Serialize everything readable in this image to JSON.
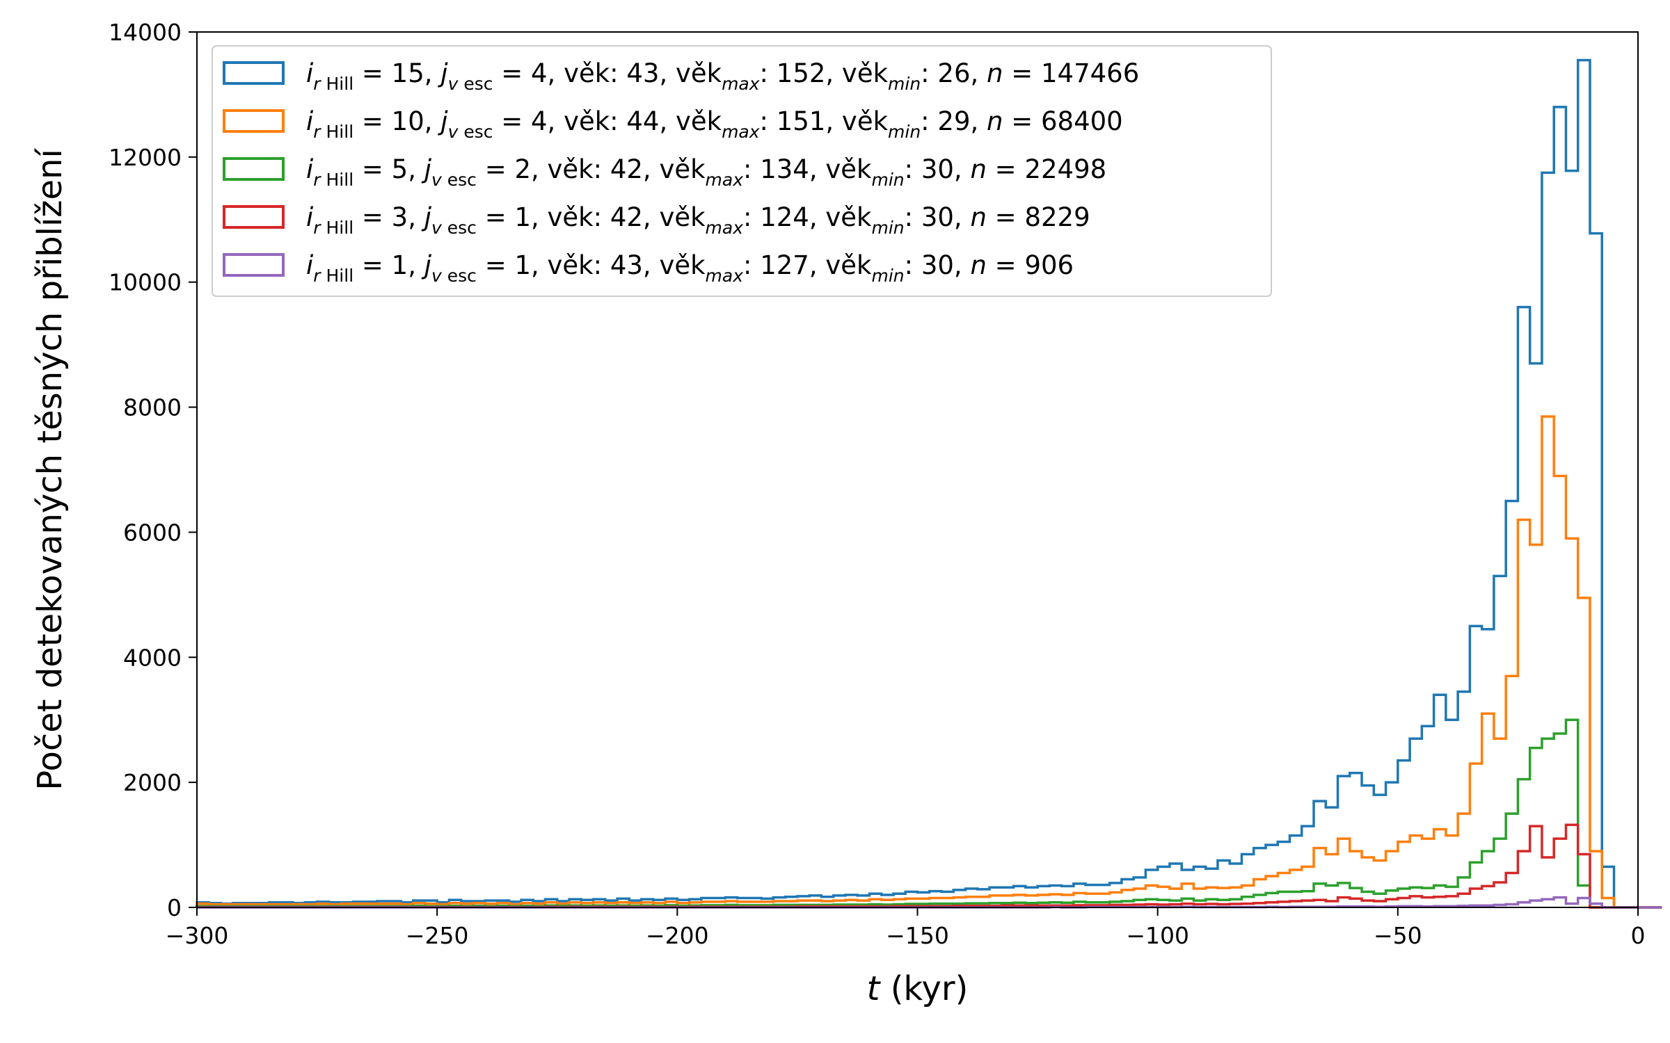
{
  "chart_data": {
    "type": "histogram-step",
    "xlabel_var": "t",
    "xlabel_unit": " (kyr)",
    "ylabel": "Počet detekovaných těsných přiblížení",
    "xlim": [
      -300,
      0
    ],
    "ylim": [
      0,
      14000
    ],
    "x_ticks": [
      -300,
      -250,
      -200,
      -150,
      -100,
      -50,
      0
    ],
    "y_ticks": [
      0,
      2000,
      4000,
      6000,
      8000,
      10000,
      12000,
      14000
    ],
    "legend_position": "upper-left",
    "bin_width": 2.5,
    "bin_start": -300,
    "series": [
      {
        "color": "#1f77b4",
        "legend": {
          "i_val": "15",
          "j_val": "4",
          "vek": "43",
          "vek_max": "152",
          "vek_min": "26",
          "n": "147466"
        },
        "values": [
          80,
          70,
          60,
          70,
          70,
          70,
          80,
          80,
          70,
          80,
          90,
          80,
          80,
          90,
          90,
          100,
          100,
          80,
          110,
          110,
          80,
          120,
          100,
          100,
          110,
          110,
          90,
          120,
          100,
          130,
          100,
          130,
          120,
          130,
          110,
          140,
          110,
          130,
          120,
          140,
          120,
          130,
          150,
          150,
          160,
          150,
          150,
          140,
          160,
          170,
          180,
          190,
          170,
          190,
          200,
          190,
          220,
          200,
          220,
          250,
          240,
          260,
          250,
          280,
          300,
          290,
          320,
          320,
          340,
          320,
          340,
          350,
          340,
          380,
          360,
          360,
          390,
          450,
          480,
          600,
          650,
          700,
          600,
          650,
          620,
          750,
          700,
          850,
          950,
          1000,
          1050,
          1150,
          1300,
          1700,
          1600,
          2100,
          2150,
          1950,
          1800,
          2000,
          2350,
          2700,
          2900,
          3400,
          3000,
          3450,
          4500,
          4450,
          5300,
          6500,
          9600,
          8700,
          11750,
          12800,
          11780,
          13550,
          10780,
          650,
          0,
          0,
          0,
          0
        ]
      },
      {
        "color": "#ff7f0e",
        "legend": {
          "i_val": "10",
          "j_val": "4",
          "vek": "44",
          "vek_max": "151",
          "vek_min": "29",
          "n": "68400"
        },
        "values": [
          60,
          50,
          50,
          50,
          50,
          50,
          50,
          50,
          50,
          50,
          60,
          50,
          60,
          60,
          60,
          60,
          60,
          50,
          70,
          60,
          50,
          70,
          60,
          70,
          60,
          70,
          50,
          70,
          60,
          80,
          60,
          80,
          70,
          80,
          70,
          80,
          70,
          80,
          70,
          90,
          70,
          80,
          90,
          90,
          100,
          90,
          90,
          90,
          100,
          100,
          110,
          110,
          100,
          110,
          120,
          110,
          130,
          120,
          130,
          140,
          140,
          150,
          150,
          160,
          170,
          170,
          190,
          190,
          200,
          190,
          200,
          210,
          200,
          230,
          220,
          220,
          240,
          280,
          300,
          350,
          330,
          300,
          380,
          300,
          320,
          310,
          320,
          350,
          450,
          500,
          550,
          600,
          650,
          950,
          850,
          1100,
          900,
          800,
          750,
          900,
          1050,
          1150,
          1100,
          1250,
          1150,
          1500,
          2300,
          3100,
          2700,
          3700,
          6200,
          5800,
          7850,
          6900,
          5900,
          4950,
          900,
          150,
          0,
          0,
          0,
          0
        ]
      },
      {
        "color": "#2ca02c",
        "legend": {
          "i_val": " 5",
          "j_val": "2",
          "vek": "42",
          "vek_max": "134",
          "vek_min": "30",
          "n": "22498"
        },
        "values": [
          20,
          20,
          20,
          20,
          20,
          20,
          20,
          20,
          20,
          20,
          20,
          20,
          20,
          20,
          20,
          20,
          20,
          20,
          25,
          20,
          20,
          25,
          20,
          25,
          20,
          25,
          20,
          25,
          20,
          30,
          25,
          30,
          25,
          30,
          25,
          30,
          25,
          30,
          25,
          35,
          25,
          30,
          35,
          35,
          40,
          35,
          35,
          35,
          40,
          40,
          40,
          40,
          40,
          45,
          45,
          45,
          50,
          45,
          50,
          55,
          55,
          60,
          60,
          60,
          65,
          65,
          70,
          70,
          75,
          70,
          75,
          80,
          75,
          90,
          80,
          80,
          90,
          100,
          120,
          130,
          120,
          110,
          140,
          110,
          130,
          120,
          130,
          170,
          200,
          230,
          250,
          250,
          260,
          380,
          350,
          390,
          310,
          250,
          220,
          270,
          300,
          320,
          310,
          350,
          330,
          480,
          720,
          900,
          1100,
          1500,
          2050,
          2550,
          2700,
          2780,
          3000,
          350,
          0,
          0,
          0,
          0,
          0,
          0
        ]
      },
      {
        "color": "#d62728",
        "legend": {
          "i_val": " 3",
          "j_val": "1",
          "vek": "42",
          "vek_max": "124",
          "vek_min": "30",
          "n": "8229"
        },
        "values": [
          5,
          5,
          5,
          5,
          5,
          5,
          5,
          5,
          5,
          5,
          5,
          5,
          5,
          5,
          5,
          5,
          5,
          5,
          5,
          5,
          5,
          5,
          5,
          5,
          5,
          5,
          5,
          5,
          5,
          10,
          5,
          10,
          5,
          10,
          5,
          10,
          5,
          10,
          5,
          10,
          5,
          10,
          10,
          10,
          10,
          10,
          10,
          10,
          10,
          10,
          15,
          15,
          15,
          15,
          15,
          15,
          15,
          15,
          20,
          20,
          20,
          20,
          20,
          25,
          25,
          25,
          25,
          30,
          30,
          30,
          30,
          30,
          30,
          35,
          35,
          35,
          40,
          40,
          45,
          50,
          45,
          50,
          60,
          50,
          55,
          50,
          55,
          60,
          70,
          80,
          90,
          100,
          110,
          120,
          100,
          160,
          140,
          110,
          100,
          130,
          150,
          180,
          160,
          170,
          180,
          220,
          300,
          340,
          400,
          550,
          900,
          1300,
          800,
          1100,
          1320,
          850,
          0,
          0,
          0,
          0,
          0,
          0
        ]
      },
      {
        "color": "#9467bd",
        "legend": {
          "i_val": " 1",
          "j_val": "1",
          "vek": "43",
          "vek_max": "127",
          "vek_min": "30",
          "n": "906"
        },
        "values": [
          0,
          0,
          0,
          0,
          0,
          0,
          0,
          0,
          0,
          0,
          0,
          0,
          0,
          0,
          0,
          0,
          0,
          0,
          0,
          0,
          0,
          0,
          0,
          0,
          0,
          0,
          0,
          0,
          0,
          0,
          0,
          0,
          0,
          0,
          0,
          0,
          0,
          0,
          0,
          0,
          0,
          0,
          0,
          0,
          0,
          0,
          0,
          0,
          0,
          0,
          0,
          0,
          0,
          0,
          0,
          0,
          0,
          0,
          0,
          0,
          0,
          0,
          0,
          0,
          0,
          0,
          0,
          0,
          0,
          0,
          0,
          5,
          0,
          0,
          5,
          5,
          5,
          5,
          5,
          5,
          5,
          5,
          10,
          5,
          5,
          5,
          5,
          5,
          5,
          10,
          5,
          10,
          10,
          10,
          10,
          15,
          15,
          15,
          10,
          15,
          20,
          20,
          15,
          20,
          20,
          25,
          30,
          30,
          40,
          50,
          80,
          110,
          130,
          160,
          60,
          150,
          60,
          0,
          0,
          0,
          0,
          0
        ]
      }
    ]
  }
}
